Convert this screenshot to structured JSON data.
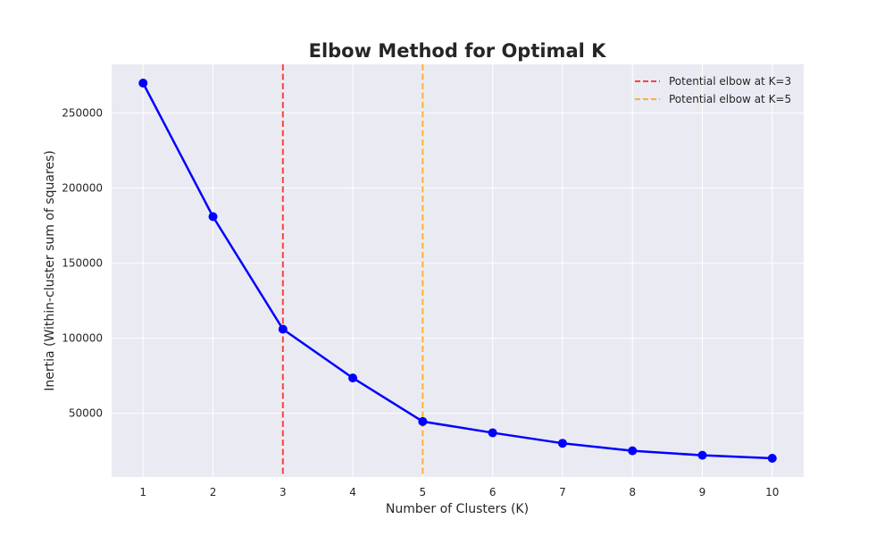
{
  "chart_data": {
    "type": "line",
    "title": "Elbow Method for Optimal K",
    "xlabel": "Number of Clusters (K)",
    "ylabel": "Inertia (Within-cluster sum of squares)",
    "x": [
      1,
      2,
      3,
      4,
      5,
      6,
      7,
      8,
      9,
      10
    ],
    "series": [
      {
        "name": "",
        "values": [
          270000,
          181000,
          106000,
          73500,
          44500,
          37000,
          30000,
          25000,
          22000,
          20000
        ],
        "color": "#0000ff"
      }
    ],
    "xticks": [
      "1",
      "2",
      "3",
      "4",
      "5",
      "6",
      "7",
      "8",
      "9",
      "10"
    ],
    "yticks": [
      50000,
      100000,
      150000,
      200000,
      250000
    ],
    "ytick_labels": [
      "50000",
      "100000",
      "150000",
      "200000",
      "250000"
    ],
    "xlim": [
      0.55,
      10.45
    ],
    "ylim": [
      7500,
      282500
    ],
    "vlines": [
      {
        "x": 3,
        "label": "Potential elbow at K=3",
        "color": "#ff4040"
      },
      {
        "x": 5,
        "label": "Potential elbow at K=5",
        "color": "#ffb030"
      }
    ],
    "grid": true,
    "legend_position": "top-right",
    "background": "#eaeaf2"
  }
}
